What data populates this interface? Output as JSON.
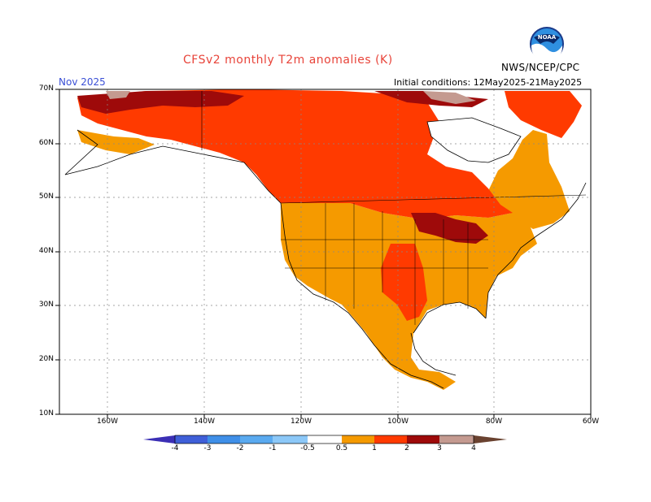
{
  "header": {
    "title": "CFSv2 monthly T2m anomalies (K)",
    "month": "Nov 2025",
    "initial_conditions": "Initial conditions: 12May2025-21May2025",
    "agency": "NWS/NCEP/CPC",
    "logo_text": "NOAA"
  },
  "axes": {
    "lat_labels": [
      "70N",
      "60N",
      "50N",
      "40N",
      "30N",
      "20N",
      "10N"
    ],
    "lon_labels": [
      "160W",
      "140W",
      "120W",
      "100W",
      "80W",
      "60W"
    ]
  },
  "colorbar": {
    "labels": [
      "-4",
      "-3",
      "-2",
      "-1",
      "-0.5",
      "0.5",
      "1",
      "2",
      "3",
      "4"
    ],
    "colors": [
      "#3b2fb5",
      "#3f5fd8",
      "#3f8fe8",
      "#5aaaf0",
      "#8cc8f8",
      "#ffffff",
      "#f59a00",
      "#ff3a00",
      "#9e0a0a",
      "#c49a90",
      "#6a4230"
    ]
  },
  "chart_data": {
    "type": "heatmap",
    "title": "CFSv2 monthly T2m anomalies (K)",
    "valid_month": "Nov 2025",
    "lat_range": [
      10,
      70
    ],
    "lon_range": [
      -170,
      -60
    ],
    "grid": true,
    "categories": [
      "0.5-1",
      "1-2",
      "2-3",
      "3-4"
    ],
    "regions": [
      {
        "region": "Western and central United States",
        "category": "0.5-1"
      },
      {
        "region": "Southern Plains / Texas",
        "category": "1-2"
      },
      {
        "region": "Great Lakes",
        "category": "2-3"
      },
      {
        "region": "Western and central Canada",
        "category": "1-2"
      },
      {
        "region": "Alaska interior",
        "category": "1-2"
      },
      {
        "region": "Arctic coast of Alaska and Canada",
        "category": "2-3"
      },
      {
        "region": "Eastern Canada / Quebec",
        "category": "0.5-1"
      },
      {
        "region": "Mexico",
        "category": "0.5-1"
      },
      {
        "region": "Hudson Bay",
        "category": "below 0.5"
      }
    ]
  }
}
